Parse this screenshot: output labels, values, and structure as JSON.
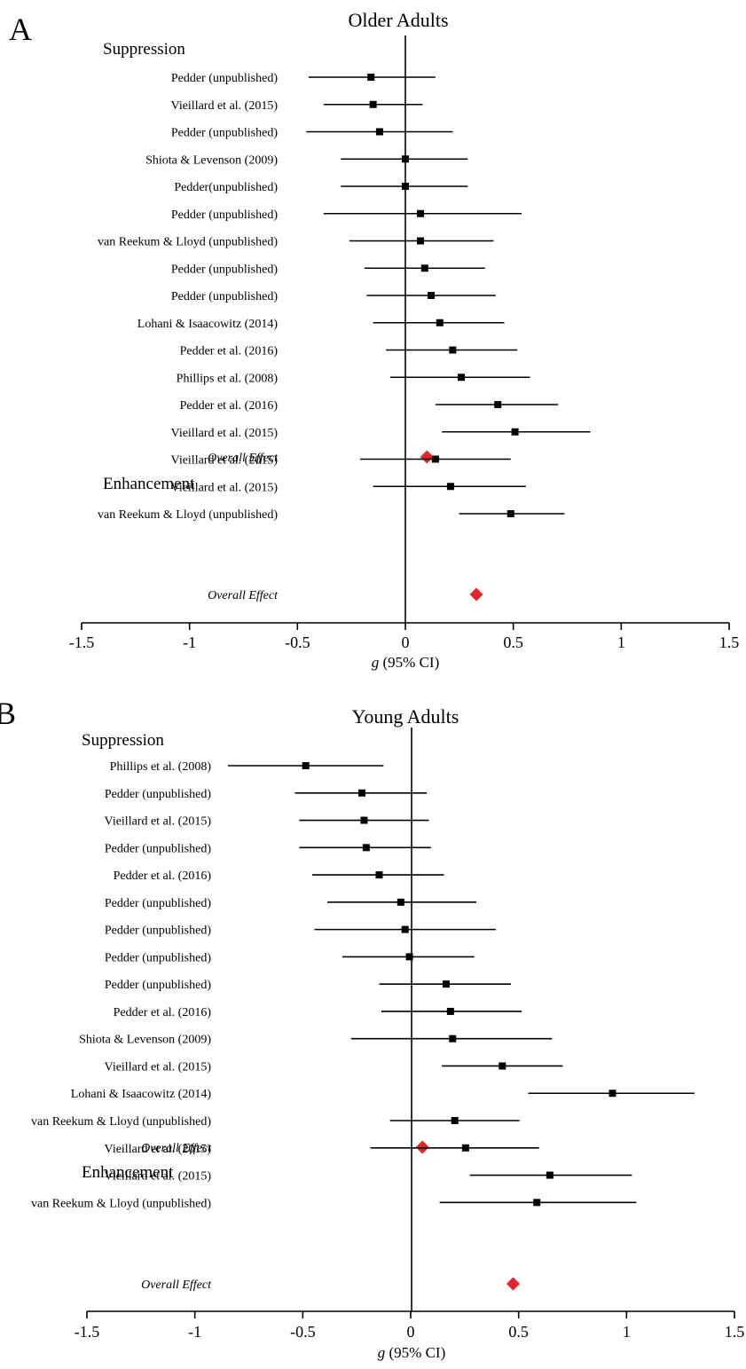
{
  "panels": [
    {
      "letter": "A",
      "title": "Older Adults",
      "xlabel_g": "g",
      "xlabel_rest": " (95% CI)"
    },
    {
      "letter": "B",
      "title": "Young Adults",
      "xlabel_g": "g",
      "xlabel_rest": " (95% CI)"
    }
  ],
  "chart_data": [
    {
      "type": "forest",
      "title": "Older Adults",
      "xlabel": "g (95% CI)",
      "xlim": [
        -1.5,
        1.5
      ],
      "xticks": [
        "-1.5",
        "-1",
        "-0.5",
        "0",
        "0.5",
        "1",
        "1.5"
      ],
      "reference_line": 0,
      "overall_color": "#e8232a",
      "groups": [
        {
          "name": "Suppression",
          "studies": [
            {
              "label": "Pedder (unpublished)",
              "g": -0.16,
              "lo": -0.45,
              "hi": 0.14
            },
            {
              "label": "Vieillard et al. (2015)",
              "g": -0.15,
              "lo": -0.38,
              "hi": 0.08
            },
            {
              "label": "Pedder (unpublished)",
              "g": -0.12,
              "lo": -0.46,
              "hi": 0.22
            },
            {
              "label": "Shiota & Levenson (2009)",
              "g": 0.0,
              "lo": -0.3,
              "hi": 0.29
            },
            {
              "label": "Pedder(unpublished)",
              "g": 0.0,
              "lo": -0.3,
              "hi": 0.29
            },
            {
              "label": "Pedder (unpublished)",
              "g": 0.07,
              "lo": -0.38,
              "hi": 0.54
            },
            {
              "label": "van Reekum & Lloyd (unpublished)",
              "g": 0.07,
              "lo": -0.26,
              "hi": 0.41
            },
            {
              "label": "Pedder (unpublished)",
              "g": 0.09,
              "lo": -0.19,
              "hi": 0.37
            },
            {
              "label": "Pedder (unpublished)",
              "g": 0.12,
              "lo": -0.18,
              "hi": 0.42
            },
            {
              "label": "Lohani & Isaacowitz (2014)",
              "g": 0.16,
              "lo": -0.15,
              "hi": 0.46
            },
            {
              "label": "Pedder et al. (2016)",
              "g": 0.22,
              "lo": -0.09,
              "hi": 0.52
            },
            {
              "label": "Phillips et al. (2008)",
              "g": 0.26,
              "lo": -0.07,
              "hi": 0.58
            },
            {
              "label": "Pedder et al. (2016)",
              "g": 0.43,
              "lo": 0.14,
              "hi": 0.71
            },
            {
              "label": "Vieillard et al. (2015)",
              "g": 0.51,
              "lo": 0.17,
              "hi": 0.86
            }
          ],
          "overall": {
            "label": "Overall Effect",
            "g": 0.1
          }
        },
        {
          "name": "Enhancement",
          "studies": [
            {
              "label": "Vieillard et al. (2015)",
              "g": 0.14,
              "lo": -0.21,
              "hi": 0.49
            },
            {
              "label": "Vieillard et al. (2015)",
              "g": 0.21,
              "lo": -0.15,
              "hi": 0.56
            },
            {
              "label": "van Reekum & Lloyd (unpublished)",
              "g": 0.49,
              "lo": 0.25,
              "hi": 0.74
            }
          ],
          "overall": {
            "label": "Overall Effect",
            "g": 0.33
          }
        }
      ]
    },
    {
      "type": "forest",
      "title": "Young Adults",
      "xlabel": "g (95% CI)",
      "xlim": [
        -1.5,
        1.5
      ],
      "xticks": [
        "-1.5",
        "-1",
        "-0.5",
        "0",
        "0.5",
        "1",
        "1.5"
      ],
      "reference_line": 0,
      "overall_color": "#e8232a",
      "groups": [
        {
          "name": "Suppression",
          "studies": [
            {
              "label": "Phillips et al. (2008)",
              "g": -0.49,
              "lo": -0.85,
              "hi": -0.13
            },
            {
              "label": "Pedder (unpublished)",
              "g": -0.23,
              "lo": -0.54,
              "hi": 0.07
            },
            {
              "label": "Vieillard et al. (2015)",
              "g": -0.22,
              "lo": -0.52,
              "hi": 0.08
            },
            {
              "label": "Pedder (unpublished)",
              "g": -0.21,
              "lo": -0.52,
              "hi": 0.09
            },
            {
              "label": "Pedder et al. (2016)",
              "g": -0.15,
              "lo": -0.46,
              "hi": 0.15
            },
            {
              "label": "Pedder (unpublished)",
              "g": -0.05,
              "lo": -0.39,
              "hi": 0.3
            },
            {
              "label": "Pedder (unpublished)",
              "g": -0.03,
              "lo": -0.45,
              "hi": 0.39
            },
            {
              "label": "Pedder (unpublished)",
              "g": -0.01,
              "lo": -0.32,
              "hi": 0.29
            },
            {
              "label": "Pedder (unpublished)",
              "g": 0.16,
              "lo": -0.15,
              "hi": 0.46
            },
            {
              "label": "Pedder et al. (2016)",
              "g": 0.18,
              "lo": -0.14,
              "hi": 0.51
            },
            {
              "label": "Shiota & Levenson (2009)",
              "g": 0.19,
              "lo": -0.28,
              "hi": 0.65
            },
            {
              "label": "Vieillard et al. (2015)",
              "g": 0.42,
              "lo": 0.14,
              "hi": 0.7
            },
            {
              "label": "Lohani & Isaacowitz (2014)",
              "g": 0.93,
              "lo": 0.54,
              "hi": 1.31
            },
            {
              "label": "van Reekum & Lloyd (unpublished)",
              "g": 0.2,
              "lo": -0.1,
              "hi": 0.5
            }
          ],
          "overall": {
            "label": "Overall Effect",
            "g": 0.05
          }
        },
        {
          "name": "Enhancement",
          "studies": [
            {
              "label": "Vieillard et al. (2015)",
              "g": 0.25,
              "lo": -0.19,
              "hi": 0.59
            },
            {
              "label": "Vieillard et al. (2015)",
              "g": 0.64,
              "lo": 0.27,
              "hi": 1.02
            },
            {
              "label": "van Reekum & Lloyd (unpublished)",
              "g": 0.58,
              "lo": 0.13,
              "hi": 1.04
            }
          ],
          "overall": {
            "label": "Overall Effect",
            "g": 0.47
          }
        }
      ]
    }
  ]
}
